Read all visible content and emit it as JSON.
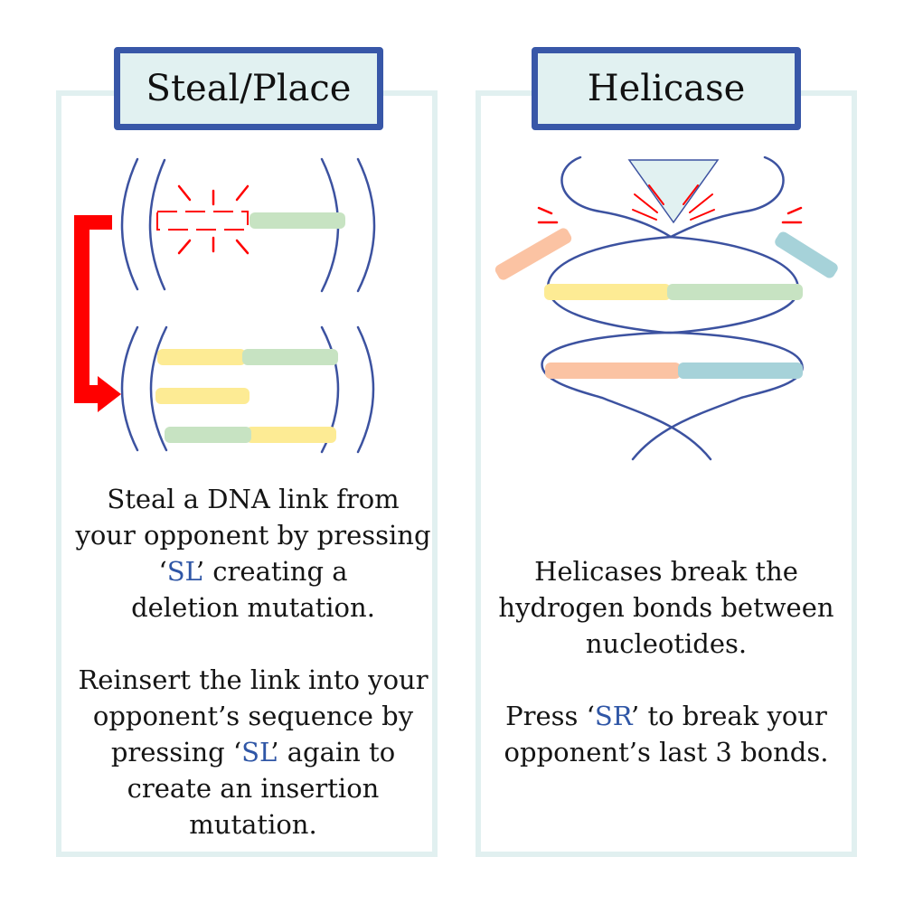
{
  "colors": {
    "title_border": "#3857a8",
    "title_fill": "#e1f1f1",
    "panel_border": "#e1f0f0",
    "strand": "#3c52a0",
    "arrow": "#ff0000",
    "accent_text": "#2f56a6",
    "nucleotide_yellow": "#fdeb94",
    "nucleotide_green": "#c7e3c2",
    "nucleotide_orange": "#fbc3a3",
    "nucleotide_blue": "#a6d2d9",
    "helicase_fill": "#e1f1f1"
  },
  "steal_place": {
    "title": "Steal/Place",
    "description_1": {
      "line1": "Steal a DNA link from",
      "line2": "your opponent by pressing",
      "line3_key": "SL",
      "line3_after": " creating a",
      "line4": "deletion mutation."
    },
    "description_2": {
      "line1": "Reinsert the link into your",
      "line2": "opponent’s sequence by",
      "line3_before": "pressing ",
      "line3_key": "SL",
      "line3_after": " again to",
      "line4": "create an insertion",
      "line5": "mutation."
    }
  },
  "helicase": {
    "title": "Helicase",
    "description_1": {
      "line1": "Helicases break the",
      "line2": "hydrogen bonds between",
      "line3": "nucleotides."
    },
    "description_2": {
      "line1_before": "Press ",
      "line1_key": "SR",
      "line1_after": " to break your",
      "line2": "opponent’s last 3 bonds."
    }
  },
  "quote": {
    "open": "‘",
    "close": "’"
  }
}
